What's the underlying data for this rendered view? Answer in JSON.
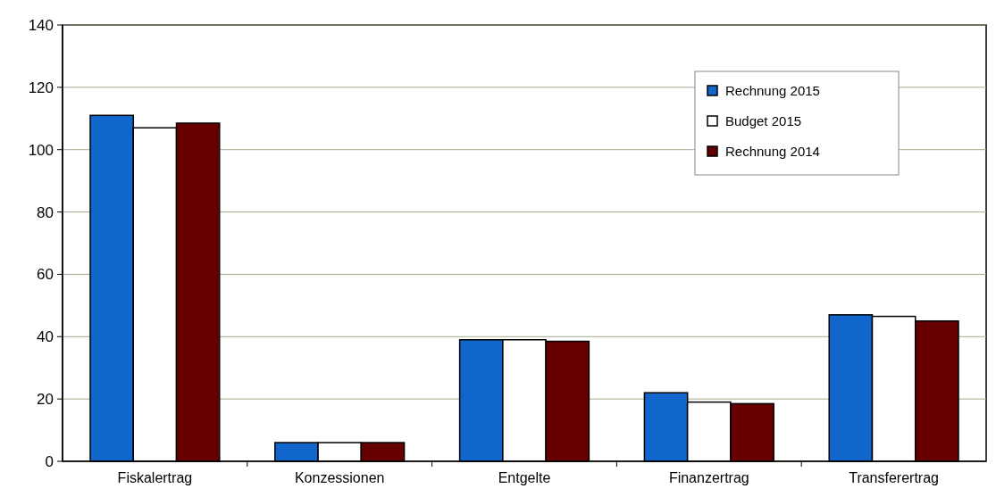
{
  "chart_data": {
    "type": "bar",
    "categories": [
      "Fiskalertrag",
      "Konzessionen",
      "Entgelte",
      "Finanzertrag",
      "Transferertrag"
    ],
    "series": [
      {
        "name": "Rechnung 2015",
        "color": "#1166cc",
        "values": [
          111,
          6,
          39,
          22,
          47
        ]
      },
      {
        "name": "Budget 2015",
        "color": "#ffffff",
        "values": [
          107,
          6,
          39,
          19,
          46.5
        ]
      },
      {
        "name": "Rechnung 2014",
        "color": "#660000",
        "values": [
          108.5,
          6,
          38.5,
          18.5,
          45
        ]
      }
    ],
    "ylim": [
      0,
      140
    ],
    "yticks": [
      0,
      20,
      40,
      60,
      80,
      100,
      120,
      140
    ],
    "grid": "y",
    "legend": "top right"
  }
}
